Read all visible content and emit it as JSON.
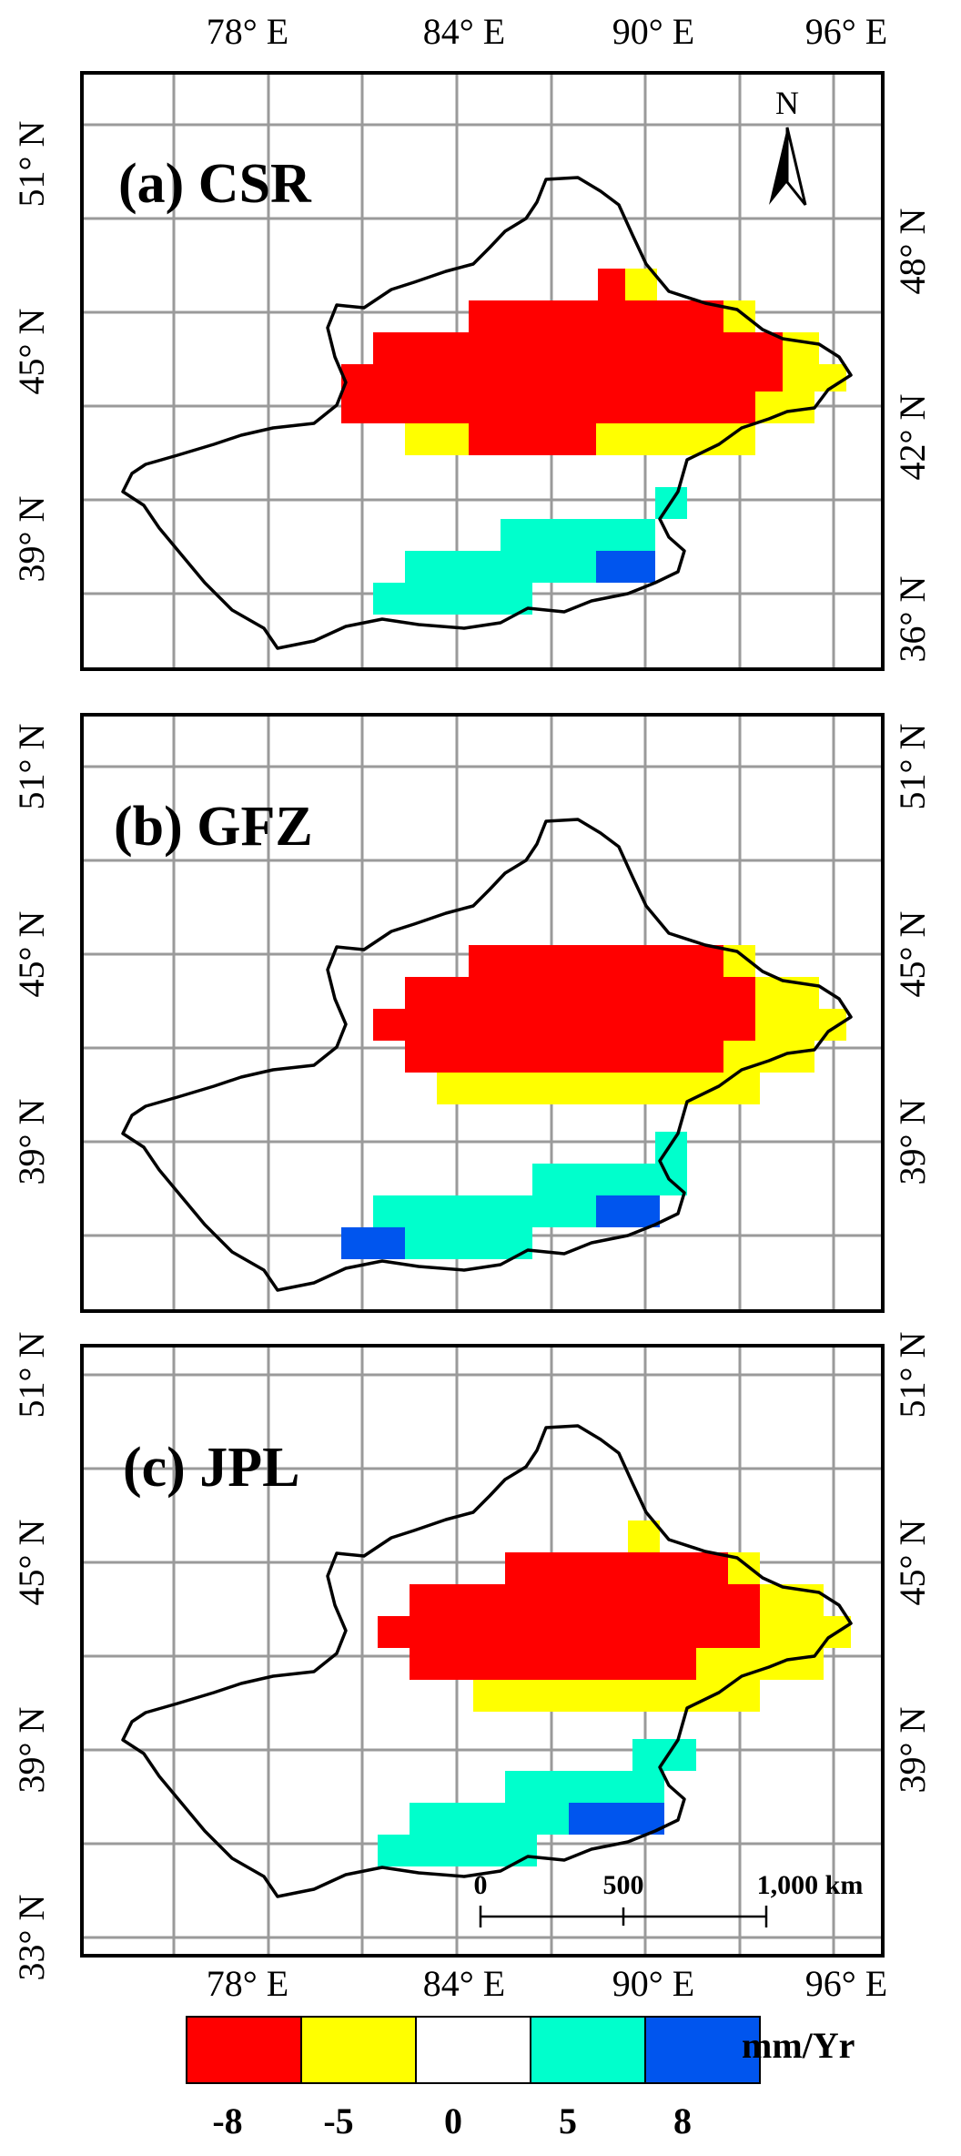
{
  "top_lon_labels": [
    "78° E",
    "84° E",
    "90° E",
    "96° E"
  ],
  "bottom_lon_labels": [
    "78° E",
    "84° E",
    "90° E",
    "96° E"
  ],
  "north_label": "N",
  "panels": [
    {
      "id": "a",
      "title": "(a) CSR",
      "left_lat": [
        "51° N",
        "45° N",
        "39° N"
      ],
      "right_lat": [
        "48° N",
        "42° N",
        "36° N"
      ]
    },
    {
      "id": "b",
      "title": "(b) GFZ",
      "left_lat": [
        "51° N",
        "45° N",
        "39° N"
      ],
      "right_lat": [
        "51° N",
        "45° N",
        "39° N"
      ]
    },
    {
      "id": "c",
      "title": "(c) JPL",
      "left_lat": [
        "51° N",
        "45° N",
        "39° N",
        "33° N"
      ],
      "right_lat": [
        "51° N",
        "45° N",
        "39° N"
      ]
    }
  ],
  "scale_bar": {
    "labels": [
      "0",
      "500",
      "1,000 km"
    ]
  },
  "legend": {
    "unit": "mm/Yr",
    "colors": [
      "#ff0000",
      "#ffff00",
      "#ffffff",
      "#00ffcc",
      "#0055ee"
    ],
    "tick_labels": [
      "-8",
      "-5",
      "0",
      "5",
      "8"
    ]
  }
}
